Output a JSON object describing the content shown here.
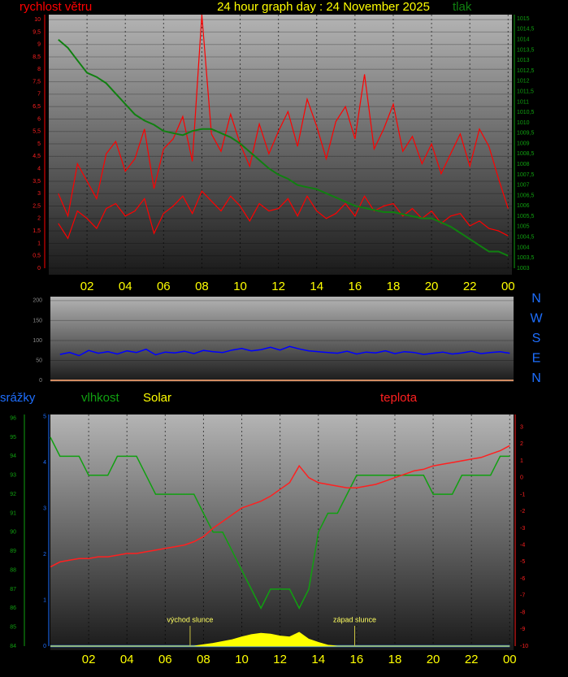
{
  "chart_data": [
    {
      "type": "line",
      "title": "24 hour graph day : 24 November 2025",
      "y_label": "rychlost větru",
      "y2_label": "tlak",
      "x": [
        0.5,
        1,
        1.5,
        2,
        2.5,
        3,
        3.5,
        4,
        4.5,
        5,
        5.5,
        6,
        6.5,
        7,
        7.5,
        8,
        8.5,
        9,
        9.5,
        10,
        10.5,
        11,
        11.5,
        12,
        12.5,
        13,
        13.5,
        14,
        14.5,
        15,
        15.5,
        16,
        16.5,
        17,
        17.5,
        18,
        18.5,
        19,
        19.5,
        20,
        20.5,
        21,
        21.5,
        22,
        22.5,
        23,
        23.5,
        24
      ],
      "xlim": [
        0,
        24.2
      ],
      "xticks": [
        {
          "value": 2,
          "label": "02"
        },
        {
          "value": 4,
          "label": "04"
        },
        {
          "value": 6,
          "label": "06"
        },
        {
          "value": 8,
          "label": "08"
        },
        10,
        12,
        14,
        16,
        18,
        20,
        22,
        {
          "value": 24,
          "label": "00"
        }
      ],
      "ylim": [
        0,
        10.2
      ],
      "yticks": [
        0,
        {
          "value": 0.5,
          "label": "0,5"
        },
        1,
        {
          "value": 1.5,
          "label": "1,5"
        },
        2,
        {
          "value": 2.5,
          "label": "2,5"
        },
        3,
        {
          "value": 3.5,
          "label": "3,5"
        },
        4,
        {
          "value": 4.5,
          "label": "4,5"
        },
        5,
        {
          "value": 5.5,
          "label": "5,5"
        },
        6,
        {
          "value": 6.5,
          "label": "6,5"
        },
        7,
        {
          "value": 7.5,
          "label": "7,5"
        },
        8,
        {
          "value": 8.5,
          "label": "8,5"
        },
        9,
        {
          "value": 9.5,
          "label": "9,5"
        },
        10
      ],
      "y2lim": [
        1003,
        1015.2
      ],
      "y2ticks": [
        1003,
        {
          "value": 1003.5,
          "label": "1003,5"
        },
        1004,
        {
          "value": 1004.5,
          "label": "1004,5"
        },
        1005,
        {
          "value": 1005.5,
          "label": "1005,5"
        },
        1006,
        {
          "value": 1006.5,
          "label": "1006,5"
        },
        1007,
        {
          "value": 1007.5,
          "label": "1007,5"
        },
        1008,
        {
          "value": 1008.5,
          "label": "1008,5"
        },
        1009,
        {
          "value": 1009.5,
          "label": "1009,5"
        },
        1010,
        {
          "value": 1010.5,
          "label": "1010,5"
        },
        1011,
        {
          "value": 1011.5,
          "label": "1011,5"
        },
        1012,
        {
          "value": 1012.5,
          "label": "1012,5"
        },
        1013,
        {
          "value": 1013.5,
          "label": "1013,5"
        },
        1014,
        {
          "value": 1014.5,
          "label": "1014,5"
        },
        1015
      ],
      "grid": true,
      "series": [
        {
          "color": "#ff0000",
          "values": [
            3.0,
            2.1,
            4.2,
            3.5,
            2.8,
            4.6,
            5.1,
            3.9,
            4.4,
            5.6,
            3.2,
            4.8,
            5.2,
            6.1,
            4.3,
            10.2,
            5.4,
            4.7,
            6.2,
            5.0,
            4.1,
            5.8,
            4.6,
            5.5,
            6.3,
            4.9,
            6.8,
            5.7,
            4.4,
            5.9,
            6.5,
            5.2,
            7.8,
            4.8,
            5.6,
            6.6,
            4.7,
            5.3,
            4.2,
            5.0,
            3.8,
            4.6,
            5.4,
            4.1,
            5.6,
            4.9,
            3.6,
            2.4
          ]
        },
        {
          "color": "#ff0000",
          "values": [
            1.8,
            1.2,
            2.3,
            2.0,
            1.6,
            2.4,
            2.6,
            2.1,
            2.3,
            2.8,
            1.4,
            2.2,
            2.5,
            2.9,
            2.2,
            3.1,
            2.7,
            2.3,
            2.9,
            2.5,
            1.9,
            2.6,
            2.3,
            2.4,
            2.8,
            2.1,
            2.9,
            2.3,
            2.0,
            2.2,
            2.6,
            2.1,
            2.9,
            2.3,
            2.5,
            2.6,
            2.1,
            2.4,
            2.0,
            2.3,
            1.8,
            2.1,
            2.2,
            1.7,
            1.9,
            1.6,
            1.5,
            1.3
          ]
        },
        {
          "color": "#108010",
          "axis": "y2",
          "values": [
            1014.0,
            1013.6,
            1013.0,
            1012.4,
            1012.2,
            1011.9,
            1011.4,
            1010.9,
            1010.4,
            1010.1,
            1009.9,
            1009.6,
            1009.5,
            1009.4,
            1009.6,
            1009.7,
            1009.7,
            1009.5,
            1009.3,
            1009.0,
            1008.6,
            1008.2,
            1007.8,
            1007.5,
            1007.3,
            1007.0,
            1006.9,
            1006.8,
            1006.6,
            1006.4,
            1006.2,
            1006.0,
            1005.9,
            1005.8,
            1005.7,
            1005.7,
            1005.6,
            1005.5,
            1005.4,
            1005.4,
            1005.2,
            1005.0,
            1004.7,
            1004.4,
            1004.1,
            1003.8,
            1003.8,
            1003.6
          ]
        }
      ]
    },
    {
      "type": "line",
      "x": [
        0.5,
        1,
        1.5,
        2,
        2.5,
        3,
        3.5,
        4,
        4.5,
        5,
        5.5,
        6,
        6.5,
        7,
        7.5,
        8,
        8.5,
        9,
        9.5,
        10,
        10.5,
        11,
        11.5,
        12,
        12.5,
        13,
        13.5,
        14,
        14.5,
        15,
        15.5,
        16,
        16.5,
        17,
        17.5,
        18,
        18.5,
        19,
        19.5,
        20,
        20.5,
        21,
        21.5,
        22,
        22.5,
        23,
        23.5,
        24
      ],
      "xlim": [
        0,
        24.2
      ],
      "ylim": [
        0,
        210
      ],
      "yticks": [
        0,
        50,
        100,
        150,
        200
      ],
      "direction_labels": [
        "N",
        "W",
        "S",
        "E",
        "N"
      ],
      "series": [
        {
          "color": "#0000ff",
          "values": [
            65,
            70,
            62,
            75,
            68,
            72,
            66,
            74,
            70,
            78,
            64,
            71,
            69,
            73,
            67,
            75,
            72,
            70,
            76,
            80,
            74,
            77,
            83,
            76,
            85,
            79,
            74,
            72,
            70,
            68,
            73,
            66,
            71,
            69,
            74,
            67,
            72,
            70,
            65,
            68,
            71,
            66,
            69,
            73,
            67,
            70,
            72,
            68
          ]
        }
      ]
    },
    {
      "type": "line",
      "x": [
        0,
        0.5,
        1,
        1.5,
        2,
        2.5,
        3,
        3.5,
        4,
        4.5,
        5,
        5.5,
        6,
        6.5,
        7,
        7.5,
        8,
        8.5,
        9,
        9.5,
        10,
        10.5,
        11,
        11.5,
        12,
        12.5,
        13,
        13.5,
        14,
        14.5,
        15,
        15.5,
        16,
        16.5,
        17,
        17.5,
        18,
        18.5,
        19,
        19.5,
        20,
        20.5,
        21,
        21.5,
        22,
        22.5,
        23,
        23.5,
        24
      ],
      "xlim": [
        0,
        24.2
      ],
      "xticks": [
        {
          "value": 2,
          "label": "02"
        },
        {
          "value": 4,
          "label": "04"
        },
        {
          "value": 6,
          "label": "06"
        },
        {
          "value": 8,
          "label": "08"
        },
        10,
        12,
        14,
        16,
        18,
        20,
        22,
        {
          "value": 24,
          "label": "00"
        }
      ],
      "ylim": [
        84,
        96.2
      ],
      "yticks": [
        84,
        85,
        86,
        87,
        88,
        89,
        90,
        91,
        92,
        93,
        94,
        95,
        96
      ],
      "rain_lim": [
        0,
        5.05
      ],
      "rain_ticks": [
        0,
        1,
        2,
        3,
        4,
        5
      ],
      "y2lim": [
        -10,
        3.75
      ],
      "y2ticks": [
        -10,
        -9,
        -8,
        -7,
        -6,
        -5,
        -4,
        -3,
        -2,
        -1,
        0,
        1,
        2,
        3
      ],
      "annotations": [
        {
          "text": "východ slunce",
          "x": 7.3
        },
        {
          "text": "západ slunce",
          "x": 15.9
        }
      ],
      "series": [
        {
          "name": "srážky",
          "color": "#1e6fff",
          "axis": "rain",
          "values": [
            0,
            0,
            0,
            0,
            0,
            0,
            0,
            0,
            0,
            0,
            0,
            0,
            0,
            0,
            0,
            0,
            0,
            0,
            0,
            0,
            0,
            0,
            0,
            0,
            0,
            0,
            0,
            0,
            0,
            0,
            0,
            0,
            0,
            0,
            0,
            0,
            0,
            0,
            0,
            0,
            0,
            0,
            0,
            0,
            0,
            0,
            0,
            0,
            0
          ]
        },
        {
          "name": "vlhkost",
          "color": "#10a010",
          "values": [
            95,
            94,
            94,
            94,
            93,
            93,
            93,
            94,
            94,
            94,
            93,
            92,
            92,
            92,
            92,
            92,
            91,
            90,
            90,
            89,
            88,
            87,
            86,
            87,
            87,
            87,
            86,
            87,
            90,
            91,
            91,
            92,
            93,
            93,
            93,
            93,
            93,
            93,
            93,
            93,
            92,
            92,
            92,
            93,
            93,
            93,
            93,
            94,
            94
          ]
        },
        {
          "name": "Solar",
          "color": "#ffff00",
          "axis": "rain",
          "values": [
            0,
            0,
            0,
            0,
            0,
            0,
            0,
            0,
            0,
            0,
            0,
            0,
            0,
            0,
            0,
            0,
            0.03,
            0.06,
            0.1,
            0.14,
            0.2,
            0.25,
            0.28,
            0.26,
            0.22,
            0.2,
            0.3,
            0.15,
            0.08,
            0.02,
            0,
            0,
            0,
            0,
            0,
            0,
            0,
            0,
            0,
            0,
            0,
            0,
            0,
            0,
            0,
            0,
            0,
            0,
            0
          ]
        },
        {
          "name": "teplota",
          "color": "#ff2020",
          "axis": "y2",
          "values": [
            -5.3,
            -5.0,
            -4.9,
            -4.8,
            -4.8,
            -4.7,
            -4.7,
            -4.6,
            -4.5,
            -4.5,
            -4.4,
            -4.3,
            -4.2,
            -4.1,
            -4.0,
            -3.8,
            -3.5,
            -3.0,
            -2.6,
            -2.2,
            -1.8,
            -1.6,
            -1.4,
            -1.1,
            -0.7,
            -0.3,
            0.7,
            0.0,
            -0.3,
            -0.4,
            -0.5,
            -0.6,
            -0.6,
            -0.5,
            -0.4,
            -0.2,
            0.0,
            0.2,
            0.4,
            0.5,
            0.7,
            0.8,
            0.9,
            1.0,
            1.1,
            1.2,
            1.4,
            1.6,
            1.9
          ]
        }
      ]
    }
  ]
}
